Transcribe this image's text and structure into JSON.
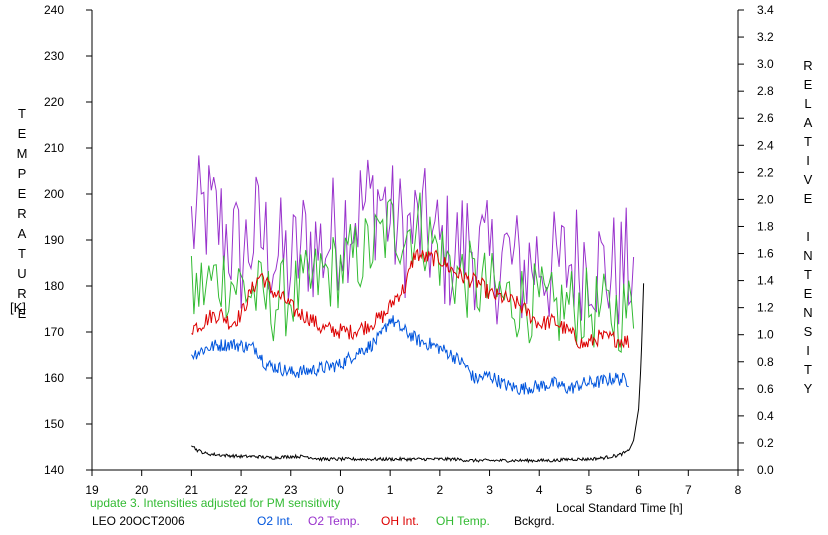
{
  "chart_data": {
    "type": "line",
    "xlabel": "Local Standard Time [h]",
    "ylabel_left": "TEMPERATURE",
    "ylabel_left_unit": "[K]",
    "ylabel_right": "RELATIVE INTENSITY",
    "x_ticks": [
      "19",
      "20",
      "21",
      "22",
      "23",
      "0",
      "1",
      "2",
      "3",
      "4",
      "5",
      "6",
      "7",
      "8"
    ],
    "xlim": [
      19,
      32
    ],
    "ylim_left": [
      140,
      240
    ],
    "y_left_ticks": [
      140,
      150,
      160,
      170,
      180,
      190,
      200,
      210,
      220,
      230,
      240
    ],
    "ylim_right": [
      0,
      3.4
    ],
    "y_right_ticks": [
      "0.0",
      "0.2",
      "0.4",
      "0.6",
      "0.8",
      "1.0",
      "1.2",
      "1.4",
      "1.6",
      "1.8",
      "2.0",
      "2.2",
      "2.4",
      "2.6",
      "2.8",
      "3.0",
      "3.2",
      "3.4"
    ],
    "grid": false,
    "note": "update 3. Intensities adjusted for PM sensitivity",
    "station": "LEO 20OCT2006",
    "series": [
      {
        "name": "O2 Int.",
        "axis": "right",
        "color": "#0055dd",
        "x": [
          21.0,
          21.3,
          21.5,
          21.8,
          22.0,
          22.3,
          22.5,
          22.8,
          23.0,
          23.3,
          23.6,
          24.0,
          24.3,
          24.6,
          24.8,
          25.0,
          25.2,
          25.4,
          25.6,
          25.8,
          26.0,
          26.2,
          26.5,
          26.7,
          27.0,
          27.3,
          27.6,
          28.0,
          28.3,
          28.6,
          28.9,
          29.2,
          29.5,
          29.8
        ],
        "y": [
          0.85,
          0.9,
          0.92,
          0.93,
          0.92,
          0.9,
          0.78,
          0.75,
          0.72,
          0.73,
          0.75,
          0.78,
          0.86,
          0.92,
          0.98,
          1.12,
          1.05,
          1.0,
          0.95,
          0.93,
          0.9,
          0.86,
          0.78,
          0.67,
          0.7,
          0.63,
          0.6,
          0.62,
          0.64,
          0.6,
          0.64,
          0.65,
          0.68,
          0.66
        ]
      },
      {
        "name": "O2 Temp.",
        "axis": "left",
        "color": "#9933cc",
        "x": [
          21.0,
          21.3,
          21.6,
          22.0,
          22.3,
          22.6,
          23.0,
          23.3,
          23.6,
          24.0,
          24.3,
          24.6,
          24.8,
          25.0,
          25.3,
          25.6,
          26.0,
          26.3,
          26.6,
          27.0,
          27.3,
          27.6,
          28.0,
          28.3,
          28.6,
          29.0,
          29.3,
          29.6,
          29.9
        ],
        "y": [
          193,
          196,
          193,
          186,
          192,
          188,
          184,
          190,
          188,
          193,
          196,
          198,
          200,
          194,
          191,
          193,
          188,
          187,
          190,
          184,
          187,
          183,
          186,
          183,
          185,
          187,
          183,
          183,
          184
        ]
      },
      {
        "name": "OH Int.",
        "axis": "right",
        "color": "#dd0000",
        "x": [
          21.0,
          21.2,
          21.4,
          21.6,
          21.8,
          22.0,
          22.2,
          22.4,
          22.6,
          22.9,
          23.1,
          23.4,
          23.6,
          23.9,
          24.2,
          24.5,
          24.7,
          24.9,
          25.1,
          25.3,
          25.5,
          25.7,
          26.0,
          26.2,
          26.5,
          26.8,
          27.0,
          27.3,
          27.6,
          28.0,
          28.3,
          28.6,
          28.9,
          29.2,
          29.5,
          29.8
        ],
        "y": [
          1.05,
          1.08,
          1.14,
          1.15,
          1.08,
          1.15,
          1.32,
          1.45,
          1.33,
          1.25,
          1.17,
          1.12,
          1.05,
          1.03,
          1.02,
          1.06,
          1.1,
          1.15,
          1.27,
          1.35,
          1.6,
          1.57,
          1.56,
          1.49,
          1.42,
          1.38,
          1.3,
          1.27,
          1.22,
          1.08,
          1.1,
          1.02,
          0.92,
          0.98,
          0.97,
          0.95
        ]
      },
      {
        "name": "OH Temp.",
        "axis": "left",
        "color": "#33bb33",
        "x": [
          21.0,
          21.3,
          21.6,
          22.0,
          22.3,
          22.6,
          23.0,
          23.3,
          23.6,
          24.0,
          24.3,
          24.6,
          24.8,
          25.0,
          25.3,
          25.6,
          26.0,
          26.3,
          26.6,
          27.0,
          27.3,
          27.6,
          28.0,
          28.3,
          28.6,
          29.0,
          29.3,
          29.6,
          29.9
        ],
        "y": [
          178,
          180,
          182,
          180,
          178,
          176,
          178,
          179,
          182,
          184,
          186,
          188,
          190,
          193,
          192,
          193,
          187,
          183,
          181,
          179,
          177,
          177,
          176,
          174,
          176,
          175,
          174,
          174,
          175
        ]
      },
      {
        "name": "Bckgrd.",
        "axis": "right",
        "color": "#000000",
        "x": [
          21.0,
          21.1,
          21.3,
          21.6,
          22.0,
          22.3,
          22.6,
          23.0,
          23.3,
          23.6,
          24.0,
          24.3,
          24.6,
          25.0,
          25.3,
          25.6,
          26.0,
          26.3,
          26.6,
          27.0,
          27.3,
          27.6,
          28.0,
          28.3,
          28.6,
          29.0,
          29.3,
          29.6,
          29.8,
          29.9,
          30.0,
          30.05,
          30.1
        ],
        "y": [
          0.19,
          0.15,
          0.12,
          0.11,
          0.1,
          0.1,
          0.09,
          0.1,
          0.1,
          0.08,
          0.08,
          0.08,
          0.08,
          0.08,
          0.08,
          0.08,
          0.08,
          0.08,
          0.07,
          0.07,
          0.07,
          0.07,
          0.07,
          0.07,
          0.08,
          0.08,
          0.09,
          0.11,
          0.14,
          0.22,
          0.45,
          0.8,
          1.38
        ]
      }
    ]
  }
}
